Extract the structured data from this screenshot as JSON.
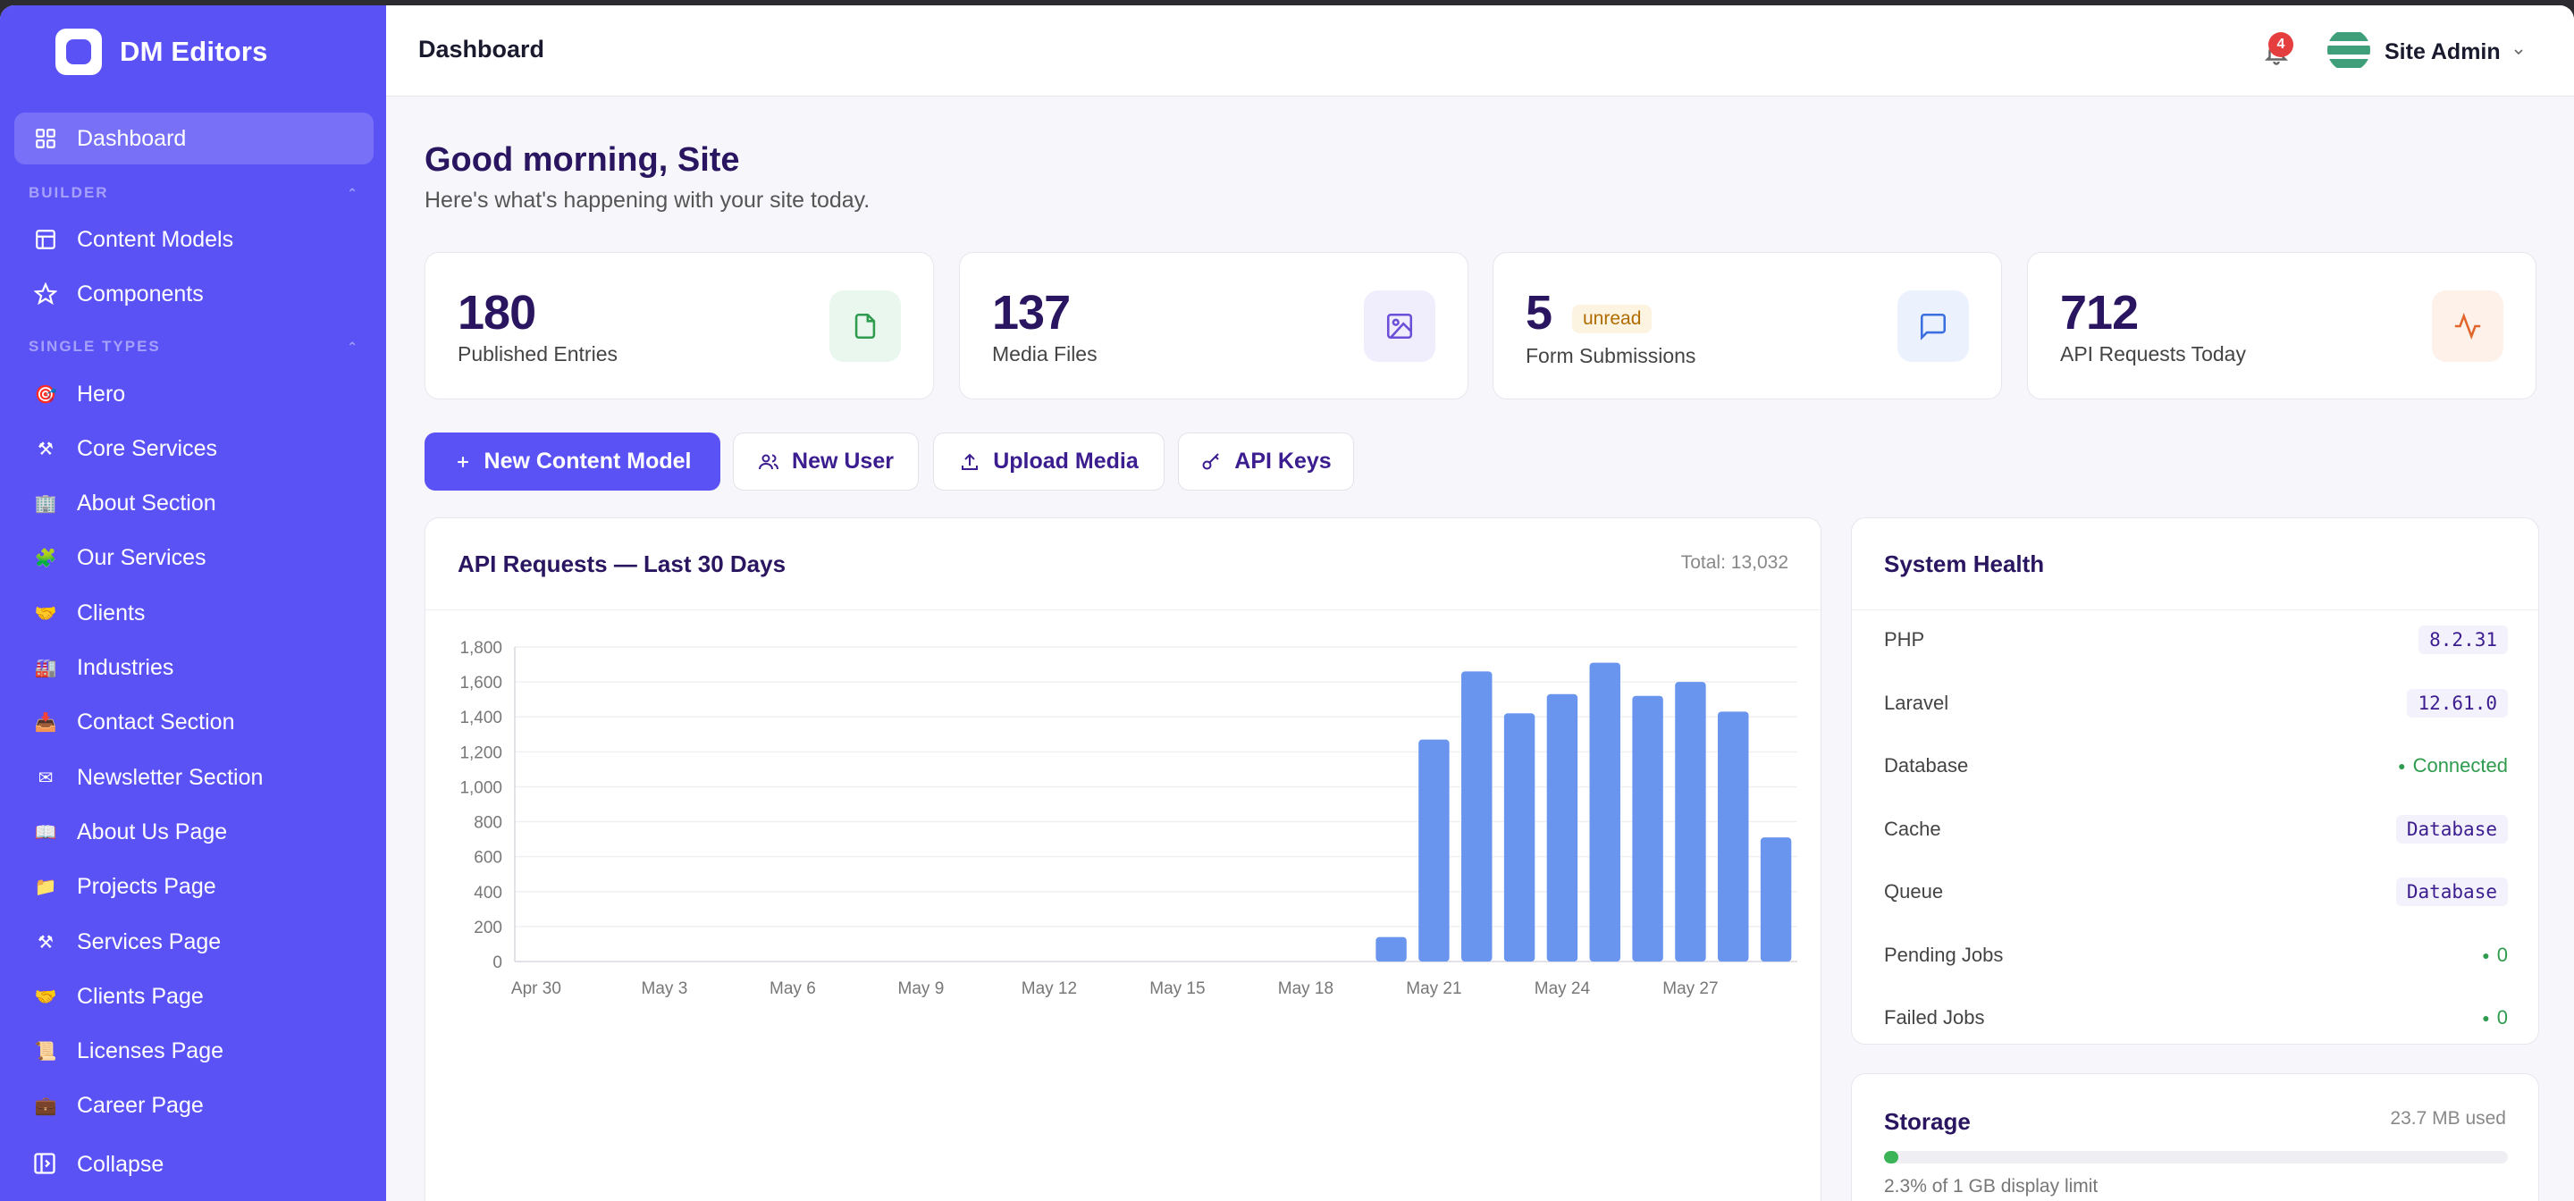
{
  "app": {
    "name": "DM Editors"
  },
  "sidebar": {
    "dashboard": "Dashboard",
    "sections": [
      {
        "label": "BUILDER",
        "items": [
          "Content Models",
          "Components"
        ]
      },
      {
        "label": "SINGLE TYPES",
        "items": [
          "Hero",
          "Core Services",
          "About Section",
          "Our Services",
          "Clients",
          "Industries",
          "Contact Section",
          "Newsletter Section",
          "About Us Page",
          "Projects Page",
          "Services Page",
          "Clients Page",
          "Licenses Page",
          "Career Page"
        ]
      }
    ],
    "builder_label": "BUILDER",
    "builder_items": [
      "Content Models",
      "Components"
    ],
    "single_types_label": "SINGLE TYPES",
    "single_items": [
      {
        "label": "Hero",
        "icon": "🎯"
      },
      {
        "label": "Core Services",
        "icon": "⚒"
      },
      {
        "label": "About Section",
        "icon": "🏢"
      },
      {
        "label": "Our Services",
        "icon": "🧩"
      },
      {
        "label": "Clients",
        "icon": "🤝"
      },
      {
        "label": "Industries",
        "icon": "🏭"
      },
      {
        "label": "Contact Section",
        "icon": "📥"
      },
      {
        "label": "Newsletter Section",
        "icon": "✉"
      },
      {
        "label": "About Us Page",
        "icon": "📖"
      },
      {
        "label": "Projects Page",
        "icon": "📁"
      },
      {
        "label": "Services Page",
        "icon": "⚒"
      },
      {
        "label": "Clients Page",
        "icon": "🤝"
      },
      {
        "label": "Licenses Page",
        "icon": "📜"
      },
      {
        "label": "Career Page",
        "icon": "💼"
      }
    ],
    "collapse": "Collapse"
  },
  "header": {
    "title": "Dashboard",
    "notifications_count": "4",
    "user_name": "Site Admin"
  },
  "greeting": {
    "title": "Good morning, Site",
    "subtitle": "Here's what's happening with your site today."
  },
  "stats": [
    {
      "value": "180",
      "label": "Published Entries",
      "icon": "file-icon",
      "color": "#2e9b4e",
      "bg": "#eaf7ee"
    },
    {
      "value": "137",
      "label": "Media Files",
      "icon": "image-icon",
      "color": "#6b4fd8",
      "bg": "#f0edfc"
    },
    {
      "value": "5",
      "badge": "unread",
      "label": "Form Submissions",
      "icon": "message-icon",
      "color": "#3b6fe0",
      "bg": "#ecf2fd"
    },
    {
      "value": "712",
      "label": "API Requests Today",
      "icon": "activity-icon",
      "color": "#e0662b",
      "bg": "#fdf1e9"
    }
  ],
  "actions": {
    "new_content_model": "New Content Model",
    "new_user": "New User",
    "upload_media": "Upload Media",
    "api_keys": "API Keys"
  },
  "api_panel": {
    "title": "API Requests — Last 30 Days",
    "total": "Total: 13,032"
  },
  "chart_data": {
    "type": "bar",
    "title": "API Requests — Last 30 Days",
    "categories": [
      "Apr 30",
      "May 1",
      "May 2",
      "May 3",
      "May 4",
      "May 5",
      "May 6",
      "May 7",
      "May 8",
      "May 9",
      "May 10",
      "May 11",
      "May 12",
      "May 13",
      "May 14",
      "May 15",
      "May 16",
      "May 17",
      "May 18",
      "May 19",
      "May 20",
      "May 21",
      "May 22",
      "May 23",
      "May 24",
      "May 25",
      "May 26",
      "May 27",
      "May 28",
      "May 29"
    ],
    "x_tick_labels": [
      "Apr 30",
      "May 3",
      "May 6",
      "May 9",
      "May 12",
      "May 15",
      "May 18",
      "May 21",
      "May 24",
      "May 27"
    ],
    "values": [
      0,
      0,
      0,
      0,
      0,
      0,
      0,
      0,
      0,
      0,
      0,
      0,
      0,
      0,
      0,
      0,
      0,
      0,
      0,
      0,
      140,
      1270,
      1660,
      1420,
      1530,
      1710,
      1520,
      1600,
      1430,
      710
    ],
    "ylim": [
      0,
      1800
    ],
    "y_ticks": [
      "0",
      "200",
      "400",
      "600",
      "800",
      "1,000",
      "1,200",
      "1,400",
      "1,600",
      "1,800"
    ],
    "bar_color": "#6a95ee",
    "grid": true,
    "xlabel": "",
    "ylabel": ""
  },
  "system_health": {
    "title": "System Health",
    "rows": [
      {
        "label": "PHP",
        "value": "8.2.31",
        "kind": "mono"
      },
      {
        "label": "Laravel",
        "value": "12.61.0",
        "kind": "mono"
      },
      {
        "label": "Database",
        "value": "Connected",
        "kind": "ok"
      },
      {
        "label": "Cache",
        "value": "Database",
        "kind": "mono"
      },
      {
        "label": "Queue",
        "value": "Database",
        "kind": "mono"
      },
      {
        "label": "Pending Jobs",
        "value": "0",
        "kind": "ok"
      },
      {
        "label": "Failed Jobs",
        "value": "0",
        "kind": "ok"
      }
    ]
  },
  "storage": {
    "title": "Storage",
    "used": "23.7 MB used",
    "fraction": 0.023,
    "caption": "2.3% of 1 GB display limit"
  },
  "colors": {
    "sidebar": "#5b52f6",
    "accent": "#5b52f6",
    "heading": "#2a1660"
  }
}
